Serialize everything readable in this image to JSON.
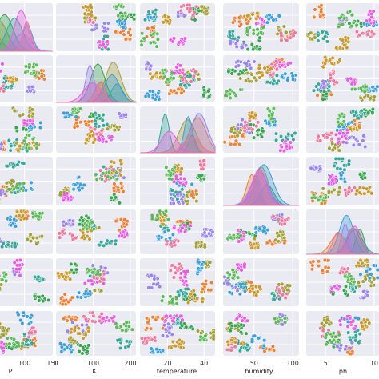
{
  "chart_data": {
    "type": "scatter",
    "subtype": "pair-plot",
    "diagonal": "kde",
    "background": "#eaeaf2",
    "grid": true,
    "columns": [
      "P",
      "K",
      "temperature",
      "humidity",
      "ph"
    ],
    "rows": [
      "P",
      "K",
      "temperature",
      "humidity",
      "ph",
      "",
      ""
    ],
    "x_axes": [
      {
        "label": "P",
        "range": [
          0,
          150
        ],
        "ticks": [
          {
            "v": 0,
            "t": "0"
          },
          {
            "v": 100,
            "t": "100"
          },
          {
            "v": 150,
            "t": "150"
          }
        ]
      },
      {
        "label": "K",
        "range": [
          0,
          215
        ],
        "ticks": [
          {
            "v": 0,
            "t": "0"
          },
          {
            "v": 100,
            "t": "100"
          },
          {
            "v": 200,
            "t": "200"
          }
        ]
      },
      {
        "label": "temperature",
        "range": [
          5,
          46
        ],
        "ticks": [
          {
            "v": 20,
            "t": "20"
          },
          {
            "v": 40,
            "t": "40"
          }
        ]
      },
      {
        "label": "humidity",
        "range": [
          10,
          108
        ],
        "ticks": [
          {
            "v": 50,
            "t": "50"
          },
          {
            "v": 100,
            "t": "100"
          }
        ]
      },
      {
        "label": "ph",
        "range": [
          3,
          10.5
        ],
        "ticks": [
          {
            "v": 5,
            "t": "5"
          },
          {
            "v": 10,
            "t": "10"
          }
        ]
      }
    ],
    "series_colors": [
      "#e8833a",
      "#a2a03b",
      "#3aa351",
      "#38a79a",
      "#3d9fd6",
      "#9a86e8",
      "#e45fe0",
      "#e87b9f",
      "#c79a2f",
      "#5fb85b"
    ]
  }
}
